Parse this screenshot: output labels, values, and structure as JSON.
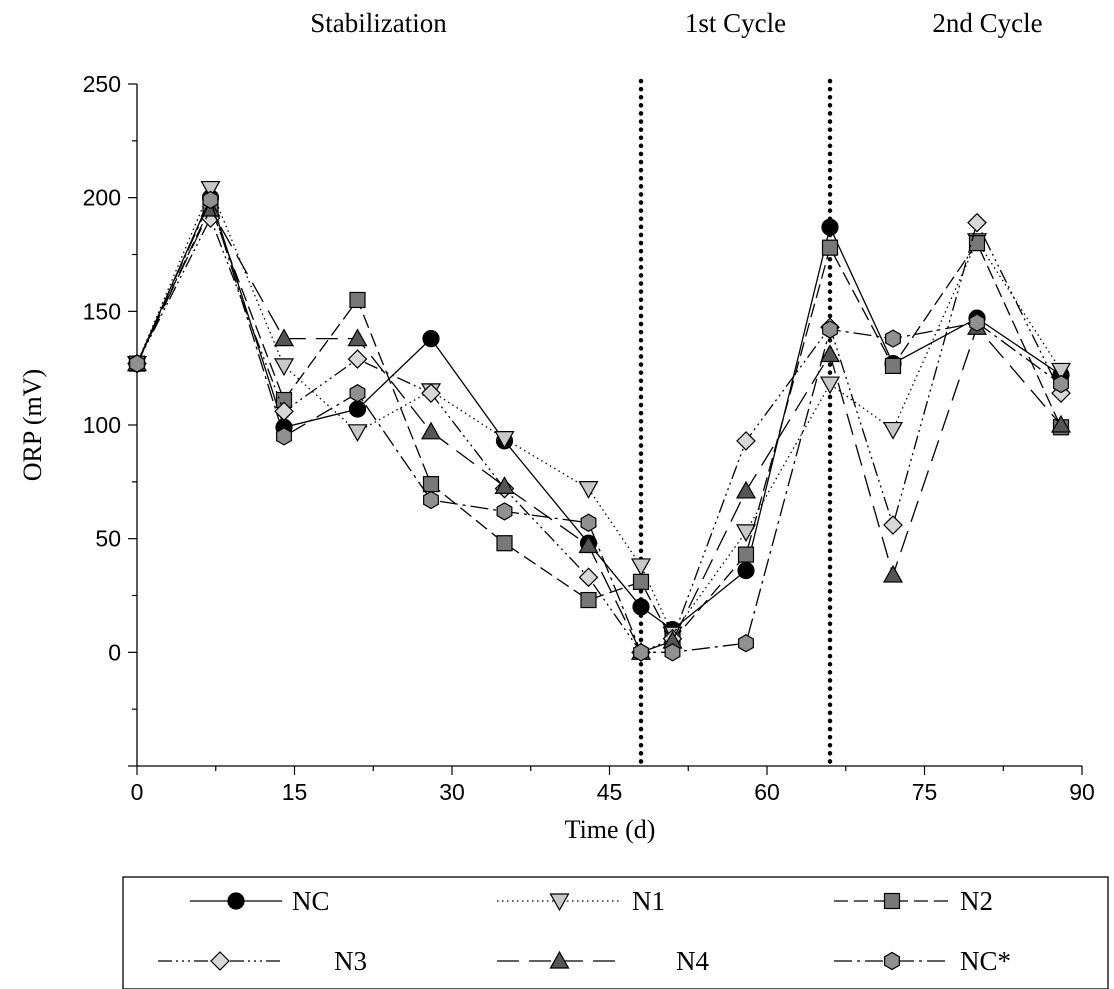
{
  "chart_data": {
    "type": "line",
    "xlabel": "Time (d)",
    "ylabel": "ORP (mV)",
    "xlim": [
      0,
      90
    ],
    "ylim": [
      -50,
      250
    ],
    "xticks": [
      0,
      15,
      30,
      45,
      60,
      75,
      90
    ],
    "yticks": [
      0,
      50,
      100,
      150,
      200,
      250
    ],
    "grid": false,
    "legend_position": "bottom",
    "phases": [
      {
        "label": "Stabilization",
        "x_center": 23
      },
      {
        "label": "1st Cycle",
        "x_center": 57
      },
      {
        "label": "2nd Cycle",
        "x_center": 81
      }
    ],
    "dividers": [
      48,
      66
    ],
    "series": [
      {
        "name": "NC",
        "marker": "circle",
        "fill": "#000000",
        "dash": "",
        "points": [
          [
            0,
            127
          ],
          [
            7,
            200
          ],
          [
            14,
            99
          ],
          [
            21,
            107
          ],
          [
            28,
            138
          ],
          [
            35,
            93
          ],
          [
            43,
            48
          ],
          [
            48,
            20
          ],
          [
            51,
            10
          ],
          [
            58,
            36
          ],
          [
            66,
            187
          ],
          [
            72,
            127
          ],
          [
            80,
            147
          ],
          [
            88,
            122
          ]
        ]
      },
      {
        "name": "N1",
        "marker": "triangle-down",
        "fill": "#c8c8c8",
        "dash": "1.5,3.5",
        "points": [
          [
            0,
            127
          ],
          [
            7,
            204
          ],
          [
            14,
            126
          ],
          [
            21,
            97
          ],
          [
            28,
            115
          ],
          [
            35,
            94
          ],
          [
            43,
            72
          ],
          [
            48,
            38
          ],
          [
            51,
            8
          ],
          [
            58,
            53
          ],
          [
            66,
            118
          ],
          [
            72,
            98
          ],
          [
            80,
            181
          ],
          [
            88,
            124
          ]
        ]
      },
      {
        "name": "N2",
        "marker": "square",
        "fill": "#787878",
        "dash": "14,6",
        "points": [
          [
            0,
            127
          ],
          [
            7,
            196
          ],
          [
            14,
            111
          ],
          [
            21,
            155
          ],
          [
            28,
            74
          ],
          [
            35,
            48
          ],
          [
            43,
            23
          ],
          [
            48,
            31
          ],
          [
            51,
            5
          ],
          [
            58,
            43
          ],
          [
            66,
            178
          ],
          [
            72,
            126
          ],
          [
            80,
            180
          ],
          [
            88,
            99
          ]
        ]
      },
      {
        "name": "N3",
        "marker": "diamond",
        "fill": "#d8d8d8",
        "dash": "14,4,2,4,2,4,2,4",
        "points": [
          [
            0,
            127
          ],
          [
            7,
            191
          ],
          [
            14,
            106
          ],
          [
            21,
            129
          ],
          [
            28,
            114
          ],
          [
            35,
            72
          ],
          [
            43,
            33
          ],
          [
            48,
            0
          ],
          [
            51,
            6
          ],
          [
            58,
            93
          ],
          [
            66,
            143
          ],
          [
            72,
            56
          ],
          [
            80,
            189
          ],
          [
            88,
            114
          ]
        ]
      },
      {
        "name": "N4",
        "marker": "triangle-up",
        "fill": "#555555",
        "dash": "22,10",
        "points": [
          [
            0,
            127
          ],
          [
            7,
            195
          ],
          [
            14,
            138
          ],
          [
            21,
            138
          ],
          [
            28,
            97
          ],
          [
            35,
            73
          ],
          [
            43,
            47
          ],
          [
            48,
            0
          ],
          [
            51,
            5
          ],
          [
            58,
            71
          ],
          [
            66,
            131
          ],
          [
            72,
            34
          ],
          [
            80,
            143
          ],
          [
            88,
            100
          ]
        ]
      },
      {
        "name": "NC*",
        "marker": "hexagon",
        "fill": "#909090",
        "dash": "18,5,3,5",
        "points": [
          [
            0,
            127
          ],
          [
            7,
            199
          ],
          [
            14,
            95
          ],
          [
            21,
            114
          ],
          [
            28,
            67
          ],
          [
            35,
            62
          ],
          [
            43,
            57
          ],
          [
            48,
            0
          ],
          [
            51,
            0
          ],
          [
            58,
            4
          ],
          [
            66,
            142
          ],
          [
            72,
            138
          ],
          [
            80,
            145
          ],
          [
            88,
            118
          ]
        ]
      }
    ]
  }
}
